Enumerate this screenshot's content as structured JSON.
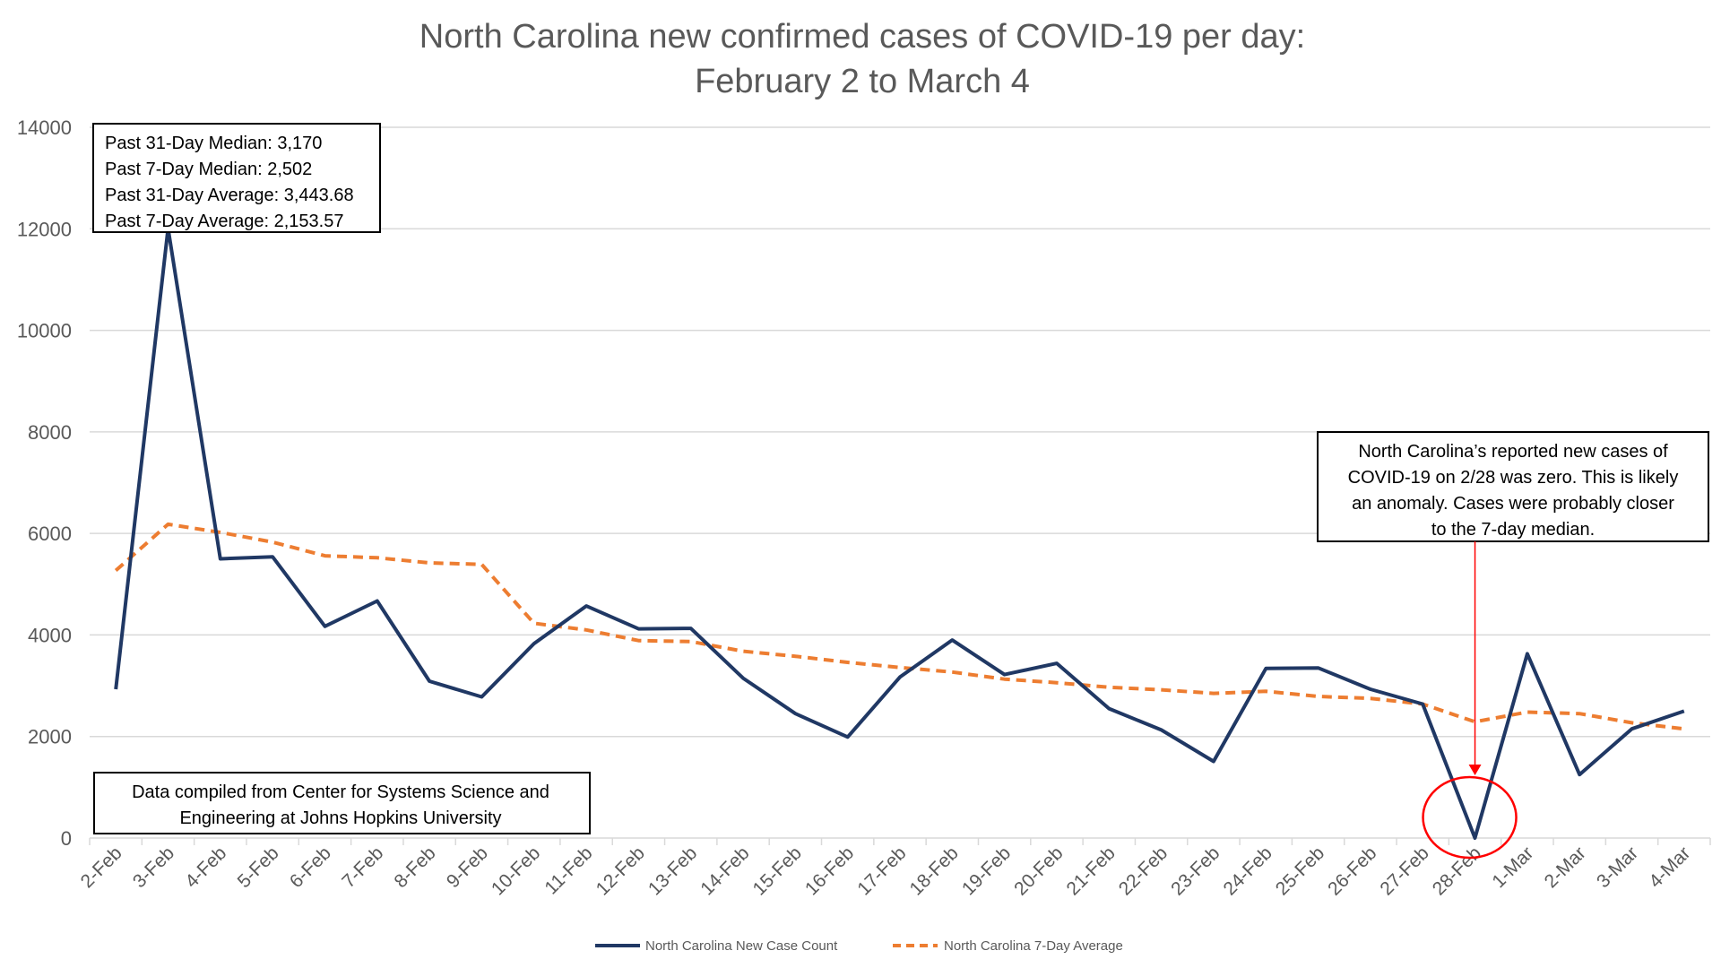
{
  "chart_data": {
    "type": "line",
    "title_line1": "North Carolina new confirmed cases of COVID-19 per day:",
    "title_line2": "February 2 to March 4",
    "ylim": [
      0,
      14000
    ],
    "yticks": [
      0,
      2000,
      4000,
      6000,
      8000,
      10000,
      12000,
      14000
    ],
    "grid": true,
    "legend_position": "bottom",
    "categories": [
      "2-Feb",
      "3-Feb",
      "4-Feb",
      "5-Feb",
      "6-Feb",
      "7-Feb",
      "8-Feb",
      "9-Feb",
      "10-Feb",
      "11-Feb",
      "12-Feb",
      "13-Feb",
      "14-Feb",
      "15-Feb",
      "16-Feb",
      "17-Feb",
      "18-Feb",
      "19-Feb",
      "20-Feb",
      "21-Feb",
      "22-Feb",
      "23-Feb",
      "24-Feb",
      "25-Feb",
      "26-Feb",
      "27-Feb",
      "28-Feb",
      "1-Mar",
      "2-Mar",
      "3-Mar",
      "4-Mar"
    ],
    "series": [
      {
        "name": "North Carolina New Case Count",
        "color": "#203864",
        "style": "solid",
        "values": [
          2930,
          12010,
          5500,
          5540,
          4170,
          4670,
          3090,
          2780,
          3830,
          4570,
          4120,
          4130,
          3150,
          2450,
          1990,
          3170,
          3900,
          3220,
          3440,
          2550,
          2130,
          1510,
          3340,
          3350,
          2930,
          2640,
          0,
          3630,
          1250,
          2150,
          2500
        ]
      },
      {
        "name": "North Carolina 7-Day Average",
        "color": "#ED7D31",
        "style": "dashed",
        "values": [
          5270,
          6180,
          6020,
          5830,
          5560,
          5520,
          5420,
          5390,
          4230,
          4100,
          3890,
          3870,
          3680,
          3580,
          3460,
          3360,
          3270,
          3130,
          3060,
          2970,
          2920,
          2850,
          2890,
          2790,
          2750,
          2640,
          2290,
          2480,
          2450,
          2270,
          2150
        ]
      }
    ],
    "annotations": {
      "stats_box": [
        "Past 31-Day Median: 3,170",
        "Past 7-Day Median: 2,502",
        "Past 31-Day Average: 3,443.68",
        "Past 7-Day Average: 2,153.57"
      ],
      "source_box": [
        "Data compiled from Center for Systems Science and",
        "Engineering at Johns Hopkins University"
      ],
      "note_box": [
        "North Carolina’s reported new cases of",
        "COVID-19 on 2/28 was zero. This is likely",
        "an anomaly. Cases were probably closer",
        "to the 7-day median."
      ],
      "highlight_category": "28-Feb",
      "highlight_color": "#FF0000"
    }
  }
}
